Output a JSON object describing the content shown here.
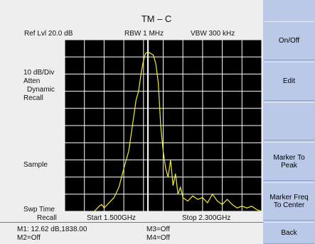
{
  "title": "TM – C",
  "header": {
    "ref_level": "Ref Lvl 20.0 dB",
    "rbw": "RBW 1 MHz",
    "vbw": "VBW 300 kHz"
  },
  "left_labels": {
    "scale": "10 dB/Div",
    "atten": "Atten",
    "dynamic": "Dynamic",
    "recall": "Recall",
    "detector": "Sample",
    "swp_time": "Swp Time",
    "swp_recall": "Recall"
  },
  "freq": {
    "start": "Start  1.500GHz",
    "stop": "Stop  2.300GHz"
  },
  "markers": {
    "m1": "M1: 12.62 dB,1838.00",
    "m2": "M2=Off",
    "m3": "M3=Off",
    "m4": "M4=Off"
  },
  "softkeys": [
    {
      "label": "On/Off"
    },
    {
      "label": "Edit"
    },
    {
      "label": ""
    },
    {
      "label": "Marker To Peak"
    },
    {
      "label": "Marker Freq To Center"
    },
    {
      "label": "Back"
    }
  ],
  "colors": {
    "trace": "#f3ee34",
    "grid": "#ffffff",
    "background": "#000000",
    "marker_line": "#ffffff",
    "softkey_bg": "#b9c9e7"
  },
  "chart_data": {
    "type": "line",
    "x_range_ghz": [
      1.5,
      2.3
    ],
    "y_range_db": [
      -80,
      20
    ],
    "marker_x_ghz": 1.838,
    "series": [
      {
        "x": [
          1.5,
          1.54,
          1.58,
          1.62,
          1.64,
          1.65,
          1.66,
          1.68,
          1.7,
          1.72,
          1.74,
          1.76,
          1.78,
          1.79,
          1.8,
          1.81,
          1.82,
          1.828,
          1.835,
          1.84,
          1.85,
          1.86,
          1.87,
          1.88,
          1.89,
          1.9,
          1.91,
          1.92,
          1.93,
          1.94,
          1.95,
          1.96,
          1.97,
          1.98,
          2.0,
          2.02,
          2.04,
          2.06,
          2.08,
          2.1,
          2.12,
          2.14,
          2.16,
          2.18,
          2.2,
          2.22,
          2.24,
          2.26,
          2.28,
          2.3
        ],
        "y": [
          -80,
          -80,
          -80,
          -80,
          -77,
          -76,
          -78,
          -75,
          -72,
          -66,
          -55,
          -45,
          -25,
          -15,
          -10,
          0,
          8,
          12,
          12.6,
          12.6,
          12,
          11,
          6,
          -5,
          -30,
          -45,
          -55,
          -60,
          -50,
          -65,
          -58,
          -70,
          -66,
          -72,
          -74,
          -71,
          -73,
          -72,
          -75,
          -70,
          -74,
          -76,
          -73,
          -76,
          -78,
          -77,
          -78,
          -77,
          -79,
          -80
        ]
      }
    ]
  }
}
